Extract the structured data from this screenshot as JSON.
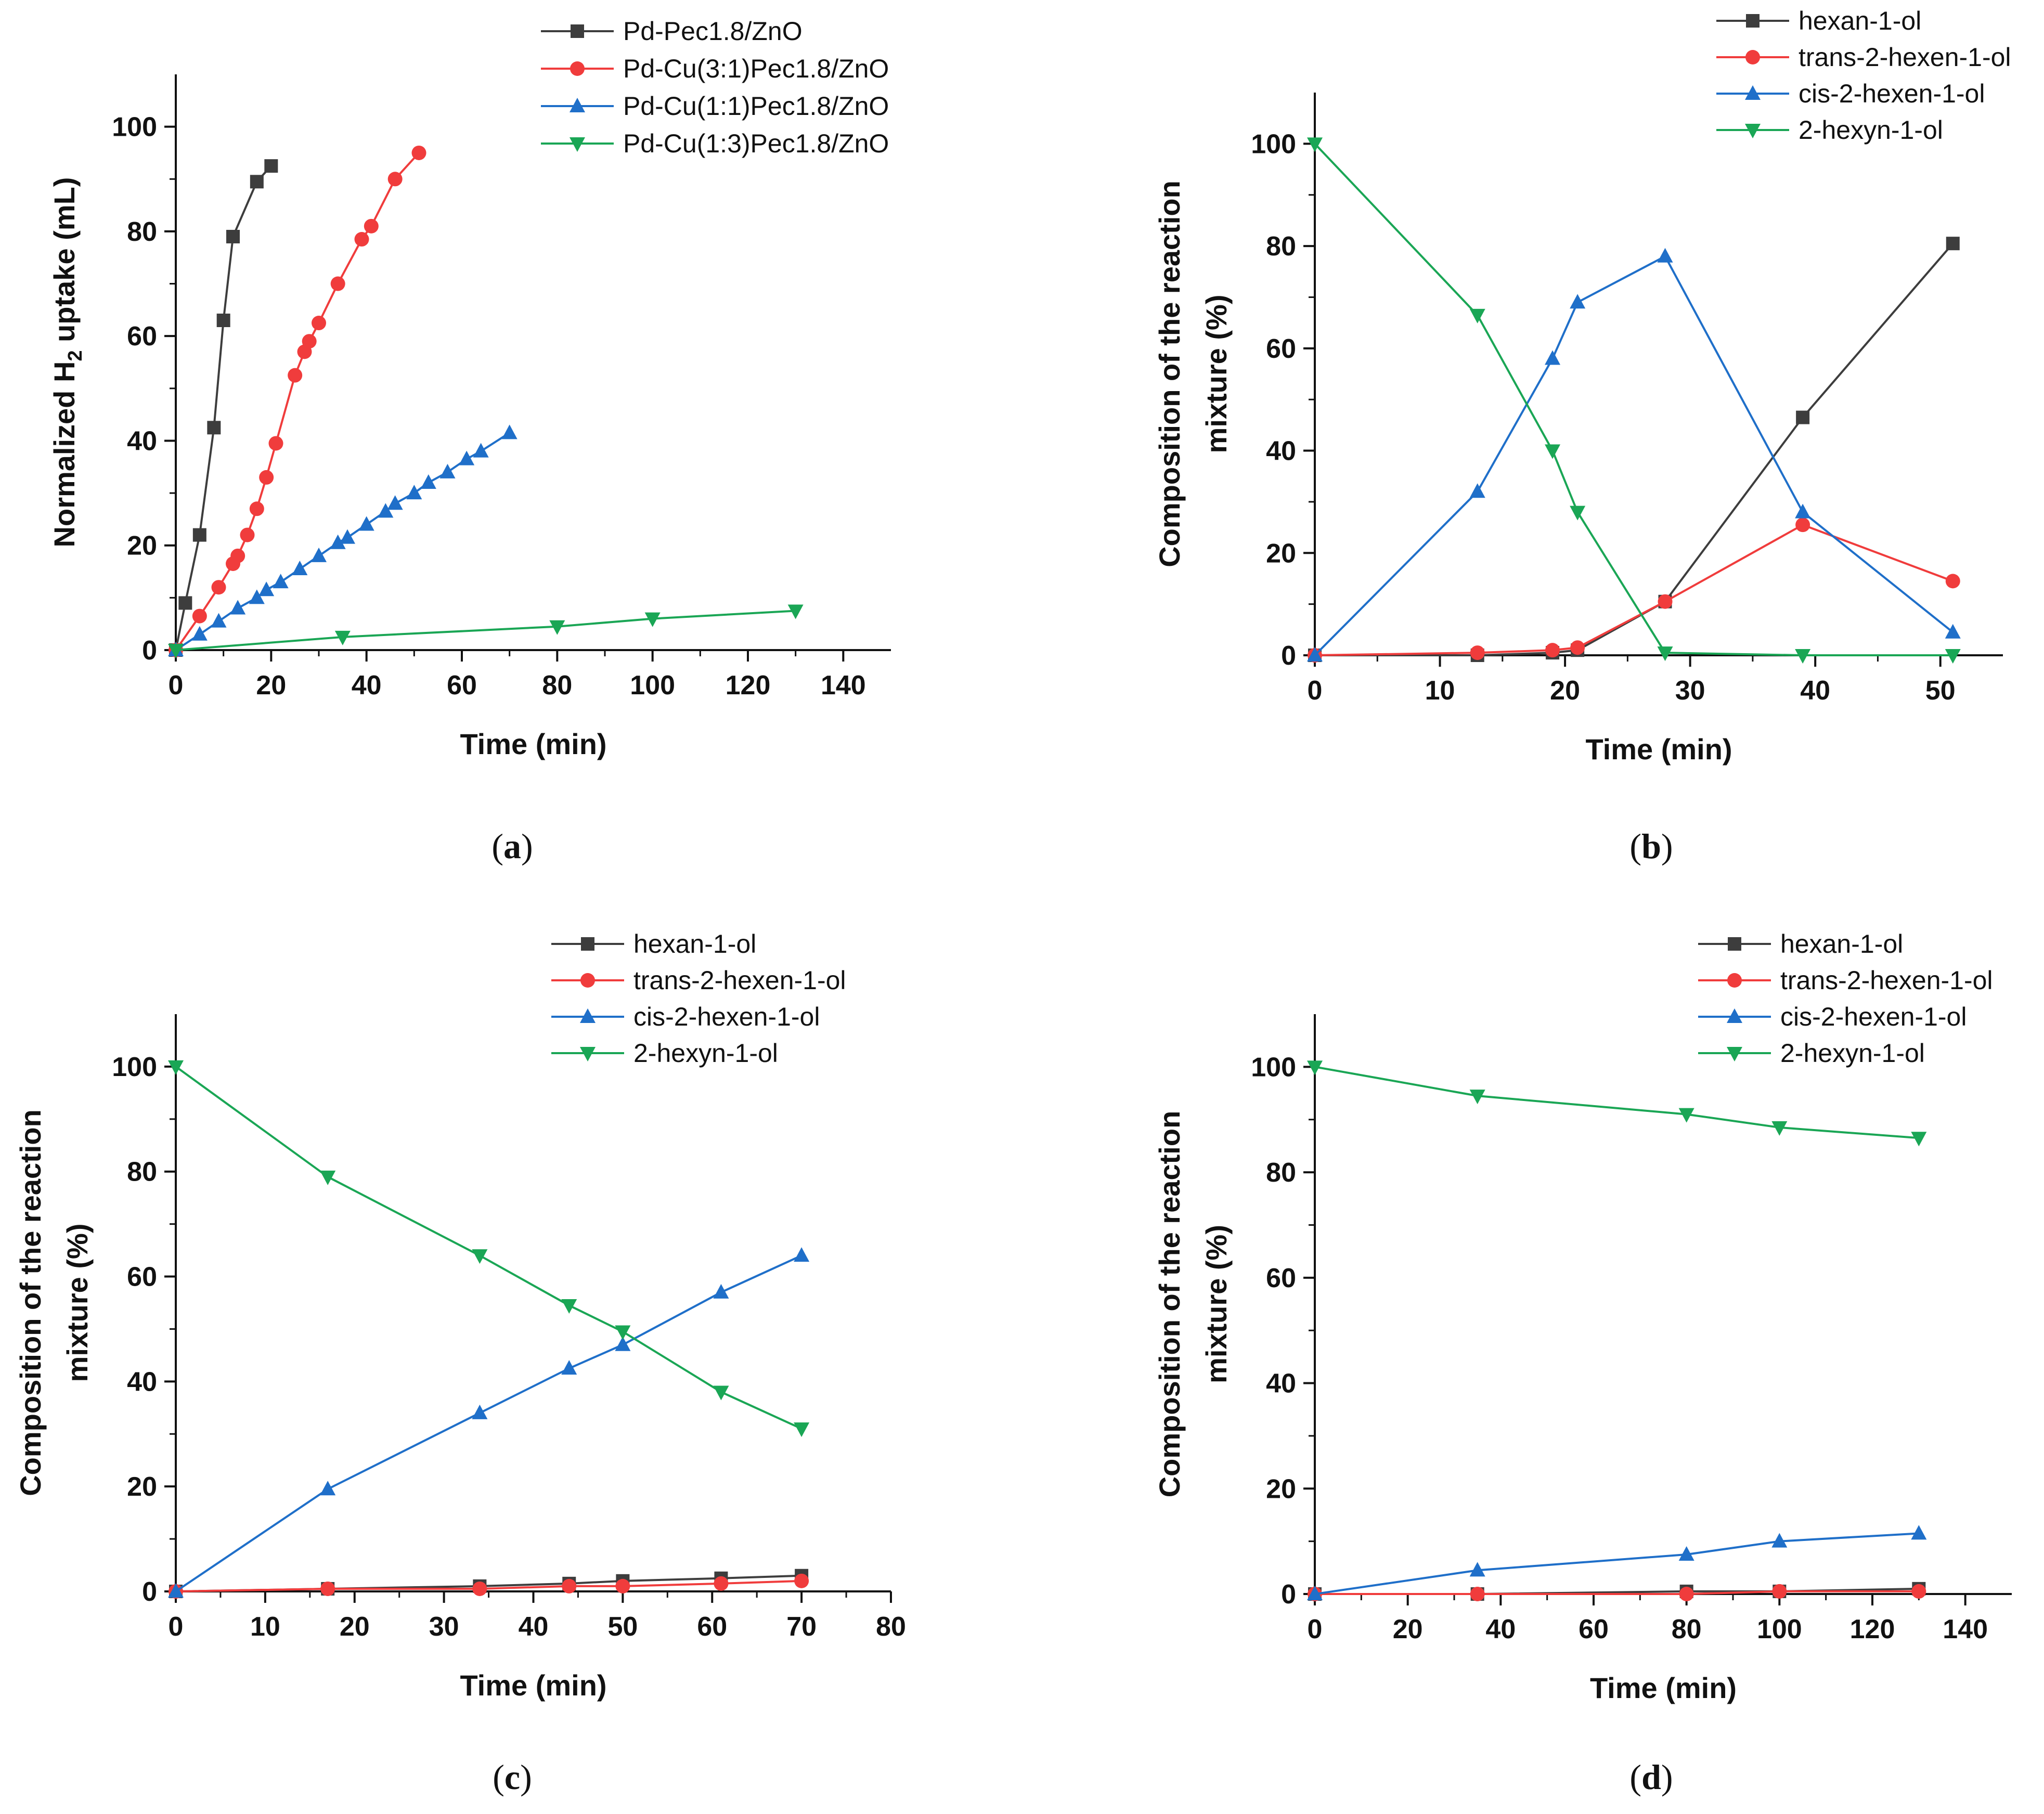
{
  "chart_data": [
    {
      "id": "a",
      "type": "line",
      "caption": "a",
      "xlabel": "Time (min)",
      "ylabel_parts": [
        "Normalized H",
        "2",
        " uptake (mL)"
      ],
      "xlim": [
        0,
        150
      ],
      "ylim": [
        0,
        110
      ],
      "xticks": [
        0,
        20,
        40,
        60,
        80,
        100,
        120,
        140
      ],
      "yticks": [
        0,
        20,
        40,
        60,
        80,
        100
      ],
      "legend_position": "top-right",
      "series": [
        {
          "name": "Pd-Pec1.8/ZnO",
          "color": "#3d3d3d",
          "marker": "square",
          "x": [
            0,
            2,
            5,
            8,
            10,
            12,
            17,
            20
          ],
          "y": [
            0,
            9,
            22,
            42.5,
            63,
            79,
            89.5,
            92.5
          ]
        },
        {
          "name": "Pd-Cu(3:1)Pec1.8/ZnO",
          "color": "#f03c3c",
          "marker": "circle",
          "x": [
            0,
            5,
            9,
            12,
            13,
            15,
            17,
            19,
            21,
            25,
            27,
            28,
            30,
            34,
            39,
            41,
            46,
            51
          ],
          "y": [
            0,
            6.5,
            12,
            16.5,
            18,
            22,
            27,
            33,
            39.5,
            52.5,
            57,
            59,
            62.5,
            70,
            78.5,
            81,
            90,
            95
          ]
        },
        {
          "name": "Pd-Cu(1:1)Pec1.8/ZnO",
          "color": "#1f6fc9",
          "marker": "triangle-up",
          "x": [
            0,
            5,
            9,
            13,
            17,
            19,
            22,
            26,
            30,
            34,
            36,
            40,
            44,
            46,
            50,
            53,
            57,
            61,
            64,
            70
          ],
          "y": [
            0,
            3,
            5.5,
            8,
            10,
            11.5,
            13,
            15.5,
            18,
            20.5,
            21.5,
            24,
            26.5,
            28,
            30,
            32,
            34,
            36.5,
            38,
            41.5
          ]
        },
        {
          "name": "Pd-Cu(1:3)Pec1.8/ZnO",
          "color": "#1aa655",
          "marker": "triangle-down",
          "x": [
            0,
            35,
            80,
            100,
            130
          ],
          "y": [
            0,
            2.5,
            4.5,
            6,
            7.5
          ]
        }
      ]
    },
    {
      "id": "b",
      "type": "line",
      "caption": "b",
      "xlabel": "Time (min)",
      "ylabel_lines": [
        "Composition of the reaction",
        "mixture (%)"
      ],
      "xlim": [
        0,
        55
      ],
      "ylim": [
        0,
        110
      ],
      "xticks": [
        0,
        10,
        20,
        30,
        40,
        50
      ],
      "yticks": [
        0,
        20,
        40,
        60,
        80,
        100
      ],
      "legend_position": "top-right",
      "series": [
        {
          "name": "hexan-1-ol",
          "color": "#3d3d3d",
          "marker": "square",
          "x": [
            0,
            13,
            19,
            21,
            28,
            39,
            51
          ],
          "y": [
            0,
            0,
            0.5,
            1,
            10.5,
            46.5,
            80.5
          ]
        },
        {
          "name": "trans-2-hexen-1-ol",
          "color": "#f03c3c",
          "marker": "circle",
          "x": [
            0,
            13,
            19,
            21,
            28,
            39,
            51
          ],
          "y": [
            0,
            0.5,
            1,
            1.5,
            10.5,
            25.5,
            14.5
          ]
        },
        {
          "name": "cis-2-hexen-1-ol",
          "color": "#1f6fc9",
          "marker": "triangle-up",
          "x": [
            0,
            13,
            19,
            21,
            28,
            39,
            51
          ],
          "y": [
            0,
            32,
            58,
            69,
            78,
            28,
            4.5
          ]
        },
        {
          "name": "2-hexyn-1-ol",
          "color": "#1aa655",
          "marker": "triangle-down",
          "x": [
            0,
            13,
            19,
            21,
            28,
            39,
            51
          ],
          "y": [
            100,
            66.5,
            40,
            28,
            0.5,
            0,
            0
          ]
        }
      ]
    },
    {
      "id": "c",
      "type": "line",
      "caption": "c",
      "xlabel": "Time (min)",
      "ylabel_lines": [
        "Composition of the reaction",
        "mixture (%)"
      ],
      "xlim": [
        0,
        80
      ],
      "ylim": [
        0,
        110
      ],
      "xticks": [
        0,
        10,
        20,
        30,
        40,
        50,
        60,
        70,
        80
      ],
      "yticks": [
        0,
        20,
        40,
        60,
        80,
        100
      ],
      "legend_position": "top-right",
      "series": [
        {
          "name": "hexan-1-ol",
          "color": "#3d3d3d",
          "marker": "square",
          "x": [
            0,
            17,
            34,
            44,
            50,
            61,
            70
          ],
          "y": [
            0,
            0.5,
            1,
            1.5,
            2,
            2.5,
            3
          ]
        },
        {
          "name": "trans-2-hexen-1-ol",
          "color": "#f03c3c",
          "marker": "circle",
          "x": [
            0,
            17,
            34,
            44,
            50,
            61,
            70
          ],
          "y": [
            0,
            0.5,
            0.5,
            1,
            1,
            1.5,
            2
          ]
        },
        {
          "name": "cis-2-hexen-1-ol",
          "color": "#1f6fc9",
          "marker": "triangle-up",
          "x": [
            0,
            17,
            34,
            44,
            50,
            61,
            70
          ],
          "y": [
            0,
            19.5,
            34,
            42.5,
            47,
            57,
            64
          ]
        },
        {
          "name": "2-hexyn-1-ol",
          "color": "#1aa655",
          "marker": "triangle-down",
          "x": [
            0,
            17,
            34,
            44,
            50,
            61,
            70
          ],
          "y": [
            100,
            79,
            64,
            54.5,
            49.5,
            38,
            31
          ]
        }
      ]
    },
    {
      "id": "d",
      "type": "line",
      "caption": "d",
      "xlabel": "Time (min)",
      "ylabel_lines": [
        "Composition of the reaction",
        "mixture (%)"
      ],
      "xlim": [
        0,
        150
      ],
      "ylim": [
        0,
        110
      ],
      "xticks": [
        0,
        20,
        40,
        60,
        80,
        100,
        120,
        140
      ],
      "yticks": [
        0,
        20,
        40,
        60,
        80,
        100
      ],
      "legend_position": "top-right",
      "series": [
        {
          "name": "hexan-1-ol",
          "color": "#3d3d3d",
          "marker": "square",
          "x": [
            0,
            35,
            80,
            100,
            130
          ],
          "y": [
            0,
            0,
            0.5,
            0.5,
            1
          ]
        },
        {
          "name": "trans-2-hexen-1-ol",
          "color": "#f03c3c",
          "marker": "circle",
          "x": [
            0,
            35,
            80,
            100,
            130
          ],
          "y": [
            0,
            0,
            0,
            0.5,
            0.5
          ]
        },
        {
          "name": "cis-2-hexen-1-ol",
          "color": "#1f6fc9",
          "marker": "triangle-up",
          "x": [
            0,
            35,
            80,
            100,
            130
          ],
          "y": [
            0,
            4.5,
            7.5,
            10,
            11.5
          ]
        },
        {
          "name": "2-hexyn-1-ol",
          "color": "#1aa655",
          "marker": "triangle-down",
          "x": [
            0,
            35,
            80,
            100,
            130
          ],
          "y": [
            100,
            94.5,
            91,
            88.5,
            86.5
          ]
        }
      ]
    }
  ]
}
